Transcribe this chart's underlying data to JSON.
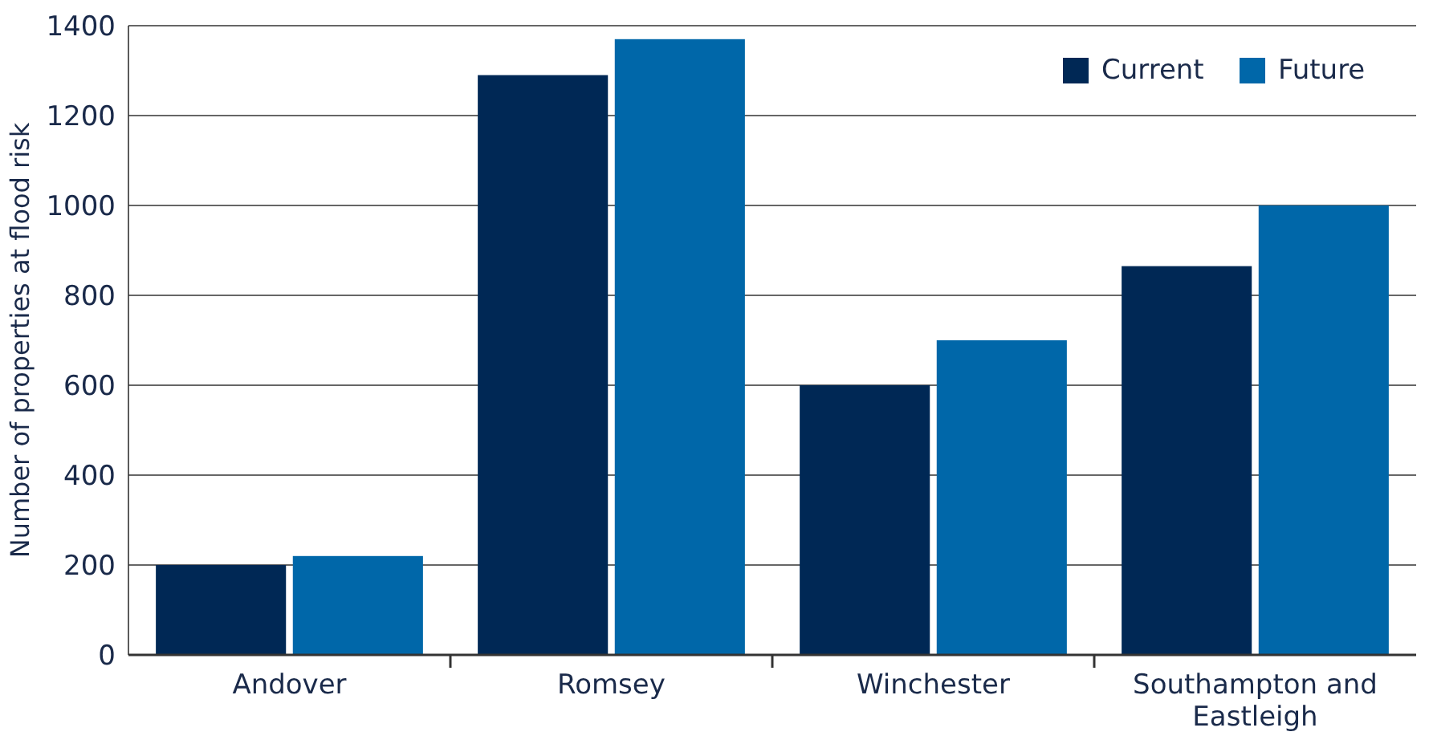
{
  "chart_data": {
    "type": "bar",
    "ylabel": "Number of properties at flood risk",
    "categories": [
      "Andover",
      "Romsey",
      "Winchester",
      "Southampton and Eastleigh"
    ],
    "series": [
      {
        "name": "Current",
        "color": "#002855",
        "values": [
          200,
          1290,
          600,
          865
        ]
      },
      {
        "name": "Future",
        "color": "#0067a9",
        "values": [
          220,
          1370,
          700,
          1000
        ]
      }
    ],
    "ylim": [
      0,
      1400
    ],
    "yticks": [
      0,
      200,
      400,
      600,
      800,
      1000,
      1200,
      1400
    ],
    "grid": "y",
    "legend": "top right"
  }
}
